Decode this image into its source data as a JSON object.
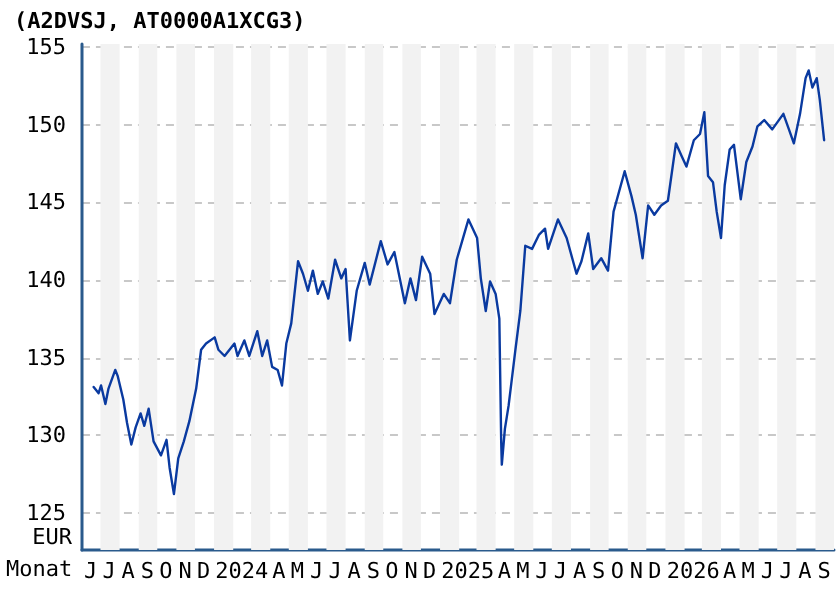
{
  "chart_data": {
    "type": "line",
    "title": "(A2DVSJ, AT0000A1XCG3)",
    "xlabel": "Monat",
    "ylabel": "EUR",
    "x": [
      "2023-06-20",
      "2023-06-28",
      "2023-07-02",
      "2023-07-09",
      "2023-07-14",
      "2023-07-25",
      "2023-07-29",
      "2023-08-07",
      "2023-08-13",
      "2023-08-20",
      "2023-08-27",
      "2023-09-04",
      "2023-09-10",
      "2023-09-17",
      "2023-09-25",
      "2023-10-07",
      "2023-10-16",
      "2023-10-21",
      "2023-10-28",
      "2023-11-04",
      "2023-11-13",
      "2023-11-22",
      "2023-12-03",
      "2023-12-11",
      "2023-12-19",
      "2024-01-02",
      "2024-01-08",
      "2024-01-18",
      "2024-02-03",
      "2024-02-08",
      "2024-02-19",
      "2024-02-27",
      "2024-03-11",
      "2024-03-19",
      "2024-03-27",
      "2024-04-04",
      "2024-04-13",
      "2024-04-20",
      "2024-04-27",
      "2024-05-05",
      "2024-05-16",
      "2024-05-24",
      "2024-06-01",
      "2024-06-09",
      "2024-06-17",
      "2024-06-25",
      "2024-07-04",
      "2024-07-15",
      "2024-07-25",
      "2024-08-01",
      "2024-08-08",
      "2024-08-19",
      "2024-09-01",
      "2024-09-09",
      "2024-09-27",
      "2024-10-08",
      "2024-10-19",
      "2024-11-05",
      "2024-11-14",
      "2024-11-23",
      "2024-12-03",
      "2024-12-16",
      "2024-12-23",
      "2025-01-07",
      "2025-01-17",
      "2025-01-28",
      "2025-02-16",
      "2025-03-02",
      "2025-03-08",
      "2025-03-16",
      "2025-03-23",
      "2025-04-01",
      "2025-04-07",
      "2025-04-10",
      "2025-04-11",
      "2025-04-16",
      "2025-04-22",
      "2025-05-03",
      "2025-05-11",
      "2025-05-19",
      "2025-05-30",
      "2025-06-10",
      "2025-06-20",
      "2025-06-25",
      "2025-07-11",
      "2025-07-25",
      "2025-08-10",
      "2025-08-18",
      "2025-08-29",
      "2025-09-06",
      "2025-09-19",
      "2025-09-30",
      "2025-10-09",
      "2025-10-27",
      "2025-11-07",
      "2025-11-14",
      "2025-11-25",
      "2025-12-04",
      "2025-12-14",
      "2025-12-25",
      "2026-01-05",
      "2026-01-18",
      "2026-01-27",
      "2026-02-04",
      "2026-02-16",
      "2026-02-26",
      "2026-03-05",
      "2026-03-11",
      "2026-03-19",
      "2026-03-25",
      "2026-04-01",
      "2026-04-07",
      "2026-04-15",
      "2026-04-22",
      "2026-05-03",
      "2026-05-12",
      "2026-05-22",
      "2026-05-30",
      "2026-06-10",
      "2026-06-23",
      "2026-07-11",
      "2026-07-20",
      "2026-07-28",
      "2026-08-07",
      "2026-08-16",
      "2026-08-21",
      "2026-08-27",
      "2026-09-03",
      "2026-09-08",
      "2026-09-15"
    ],
    "series": [
      {
        "color": "#0a3aa0",
        "values": [
          133.1,
          132.7,
          133.2,
          132.0,
          133.0,
          134.2,
          133.8,
          132.3,
          130.8,
          129.4,
          130.5,
          131.4,
          130.6,
          131.7,
          129.6,
          128.7,
          129.7,
          127.9,
          126.2,
          128.5,
          129.6,
          130.9,
          133.0,
          135.5,
          135.9,
          136.3,
          135.5,
          135.1,
          135.9,
          135.1,
          136.1,
          135.1,
          136.7,
          135.1,
          136.1,
          134.4,
          134.2,
          133.2,
          135.9,
          137.2,
          141.2,
          140.4,
          139.3,
          140.6,
          139.1,
          139.9,
          138.8,
          141.3,
          140.1,
          140.7,
          136.1,
          139.3,
          141.1,
          139.7,
          142.5,
          141.0,
          141.8,
          138.5,
          140.1,
          138.7,
          141.5,
          140.4,
          137.8,
          139.1,
          138.5,
          141.3,
          143.9,
          142.7,
          140.1,
          138.0,
          139.9,
          139.1,
          137.5,
          129.6,
          128.1,
          130.4,
          131.9,
          135.5,
          138.0,
          142.2,
          142.0,
          142.9,
          143.3,
          142.0,
          143.9,
          142.7,
          140.4,
          141.2,
          143.0,
          140.7,
          141.4,
          140.6,
          144.4,
          147.0,
          145.4,
          144.2,
          141.4,
          144.8,
          144.2,
          144.8,
          145.1,
          148.8,
          148.0,
          147.3,
          149.0,
          149.4,
          150.8,
          146.7,
          146.3,
          144.4,
          142.7,
          146.1,
          148.4,
          148.7,
          145.2,
          147.6,
          148.6,
          149.9,
          150.3,
          149.7,
          150.7,
          149.7,
          148.8,
          150.7,
          153.0,
          153.5,
          152.4,
          153.0,
          151.6,
          149.0
        ]
      }
    ],
    "xlim": [
      "2023-06-01",
      "2026-10-01"
    ],
    "xticks": [
      {
        "value": "2023-06-15",
        "label": "J"
      },
      {
        "value": "2023-07-15",
        "label": "J"
      },
      {
        "value": "2023-08-15",
        "label": "A"
      },
      {
        "value": "2023-09-15",
        "label": "S"
      },
      {
        "value": "2023-10-15",
        "label": "O"
      },
      {
        "value": "2023-11-15",
        "label": "N"
      },
      {
        "value": "2023-12-15",
        "label": "D"
      },
      {
        "value": "2024-02-15",
        "label": "2024"
      },
      {
        "value": "2024-04-15",
        "label": "A"
      },
      {
        "value": "2024-05-15",
        "label": "M"
      },
      {
        "value": "2024-06-15",
        "label": "J"
      },
      {
        "value": "2024-07-15",
        "label": "J"
      },
      {
        "value": "2024-08-15",
        "label": "A"
      },
      {
        "value": "2024-09-15",
        "label": "S"
      },
      {
        "value": "2024-10-15",
        "label": "O"
      },
      {
        "value": "2024-11-15",
        "label": "N"
      },
      {
        "value": "2024-12-15",
        "label": "D"
      },
      {
        "value": "2025-02-15",
        "label": "2025"
      },
      {
        "value": "2025-04-15",
        "label": "A"
      },
      {
        "value": "2025-05-15",
        "label": "M"
      },
      {
        "value": "2025-06-15",
        "label": "J"
      },
      {
        "value": "2025-07-15",
        "label": "J"
      },
      {
        "value": "2025-08-15",
        "label": "A"
      },
      {
        "value": "2025-09-15",
        "label": "S"
      },
      {
        "value": "2025-10-15",
        "label": "O"
      },
      {
        "value": "2025-11-15",
        "label": "N"
      },
      {
        "value": "2025-12-15",
        "label": "D"
      },
      {
        "value": "2026-02-15",
        "label": "2026"
      },
      {
        "value": "2026-04-15",
        "label": "A"
      },
      {
        "value": "2026-05-15",
        "label": "M"
      },
      {
        "value": "2026-06-15",
        "label": "J"
      },
      {
        "value": "2026-07-15",
        "label": "J"
      },
      {
        "value": "2026-08-15",
        "label": "A"
      },
      {
        "value": "2026-09-15",
        "label": "S"
      }
    ],
    "ylim": [
      122.6,
      155.2
    ],
    "yticks": [
      125,
      130,
      135,
      140,
      145,
      150,
      155
    ],
    "bands": [
      {
        "axis": "x",
        "from": "2023-07-01",
        "to": "2023-08-01",
        "color": "#f2f2f2"
      },
      {
        "axis": "x",
        "from": "2023-09-01",
        "to": "2023-10-01",
        "color": "#f2f2f2"
      },
      {
        "axis": "x",
        "from": "2023-11-01",
        "to": "2023-12-01",
        "color": "#f2f2f2"
      },
      {
        "axis": "x",
        "from": "2024-01-01",
        "to": "2024-02-01",
        "color": "#f2f2f2"
      },
      {
        "axis": "x",
        "from": "2024-03-01",
        "to": "2024-04-01",
        "color": "#f2f2f2"
      },
      {
        "axis": "x",
        "from": "2024-05-01",
        "to": "2024-06-01",
        "color": "#f2f2f2"
      },
      {
        "axis": "x",
        "from": "2024-07-01",
        "to": "2024-08-01",
        "color": "#f2f2f2"
      },
      {
        "axis": "x",
        "from": "2024-09-01",
        "to": "2024-10-01",
        "color": "#f2f2f2"
      },
      {
        "axis": "x",
        "from": "2024-11-01",
        "to": "2024-12-01",
        "color": "#f2f2f2"
      },
      {
        "axis": "x",
        "from": "2025-01-01",
        "to": "2025-02-01",
        "color": "#f2f2f2"
      },
      {
        "axis": "x",
        "from": "2025-03-01",
        "to": "2025-04-01",
        "color": "#f2f2f2"
      },
      {
        "axis": "x",
        "from": "2025-05-01",
        "to": "2025-06-01",
        "color": "#f2f2f2"
      },
      {
        "axis": "x",
        "from": "2025-07-01",
        "to": "2025-08-01",
        "color": "#f2f2f2"
      },
      {
        "axis": "x",
        "from": "2025-09-01",
        "to": "2025-10-01",
        "color": "#f2f2f2"
      },
      {
        "axis": "x",
        "from": "2025-11-01",
        "to": "2025-12-01",
        "color": "#f2f2f2"
      },
      {
        "axis": "x",
        "from": "2026-01-01",
        "to": "2026-02-01",
        "color": "#f2f2f2"
      },
      {
        "axis": "x",
        "from": "2026-03-01",
        "to": "2026-04-01",
        "color": "#f2f2f2"
      },
      {
        "axis": "x",
        "from": "2026-05-01",
        "to": "2026-06-01",
        "color": "#f2f2f2"
      },
      {
        "axis": "x",
        "from": "2026-07-01",
        "to": "2026-08-01",
        "color": "#f2f2f2"
      },
      {
        "axis": "x",
        "from": "2026-09-01",
        "to": "2026-10-01",
        "color": "#f2f2f2"
      }
    ],
    "grid": "y",
    "marker": "none",
    "line_style": "solid"
  }
}
